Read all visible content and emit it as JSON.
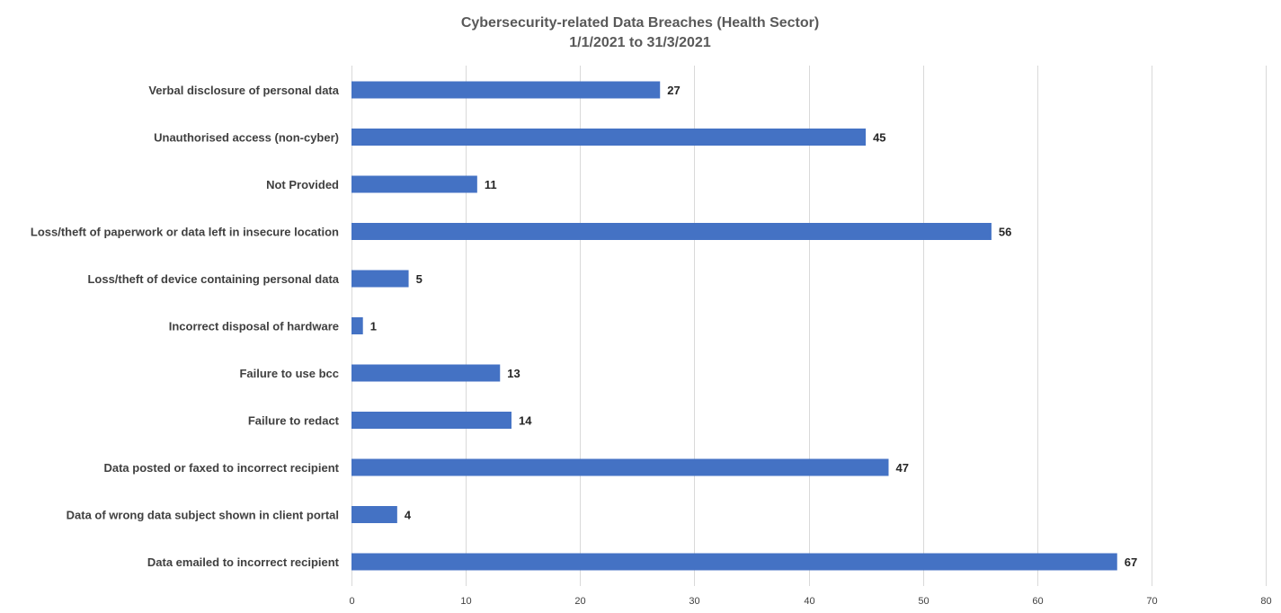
{
  "chart_data": {
    "type": "bar",
    "orientation": "horizontal",
    "title": "Cybersecurity-related Data Breaches (Health Sector)",
    "subtitle": "1/1/2021 to 31/3/2021",
    "xlabel": "",
    "ylabel": "",
    "categories": [
      "Verbal disclosure of personal data",
      "Unauthorised access (non-cyber)",
      "Not Provided",
      "Loss/theft of paperwork or data left in insecure location",
      "Loss/theft of device containing personal data",
      "Incorrect disposal of hardware",
      "Failure to use bcc",
      "Failure to redact",
      "Data posted or faxed to incorrect recipient",
      "Data of wrong data subject shown in client portal",
      "Data emailed to incorrect recipient"
    ],
    "values": [
      27,
      45,
      11,
      56,
      5,
      1,
      13,
      14,
      47,
      4,
      67
    ],
    "xlim": [
      0,
      80
    ],
    "ticks": [
      0,
      10,
      20,
      30,
      40,
      50,
      60,
      70,
      80
    ],
    "grid": "vertical",
    "legend": "none",
    "bar_color": "#4472C4",
    "grid_color": "#D9D9D9"
  }
}
